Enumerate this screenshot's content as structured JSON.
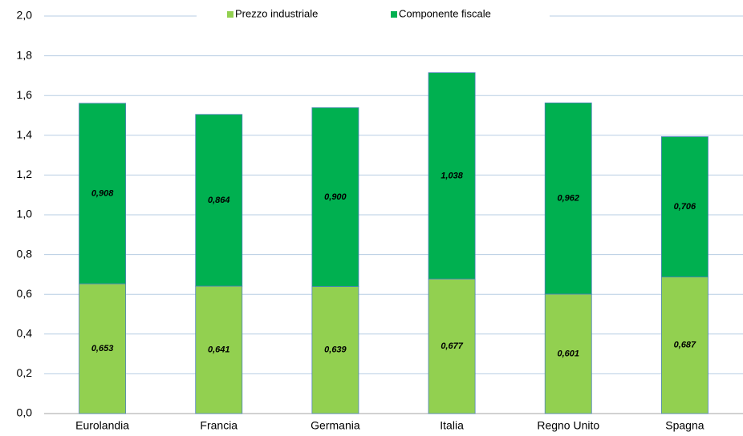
{
  "chart_data": {
    "type": "stacked-bar",
    "categories": [
      "Eurolandia",
      "Francia",
      "Germania",
      "Italia",
      "Regno Unito",
      "Spagna"
    ],
    "series": [
      {
        "name": "Prezzo industriale",
        "color": "#92d050",
        "values": [
          0.653,
          0.641,
          0.639,
          0.677,
          0.601,
          0.687
        ],
        "value_labels": [
          "0,653",
          "0,641",
          "0,639",
          "0,677",
          "0,601",
          "0,687"
        ]
      },
      {
        "name": "Componente fiscale",
        "color": "#00b050",
        "values": [
          0.908,
          0.864,
          0.9,
          1.038,
          0.962,
          0.706
        ],
        "value_labels": [
          "0,908",
          "0,864",
          "0,900",
          "1,038",
          "0,962",
          "0,706"
        ]
      }
    ],
    "ylim": [
      0,
      2
    ],
    "yticks": [
      {
        "value": 0,
        "label": "0,0"
      },
      {
        "value": 0.2,
        "label": "0,2"
      },
      {
        "value": 0.4,
        "label": "0,4"
      },
      {
        "value": 0.6,
        "label": "0,6"
      },
      {
        "value": 0.8,
        "label": "0,8"
      },
      {
        "value": 1,
        "label": "1,0"
      },
      {
        "value": 1.2,
        "label": "1,2"
      },
      {
        "value": 1.4,
        "label": "1,4"
      },
      {
        "value": 1.6,
        "label": "1,6"
      },
      {
        "value": 1.8,
        "label": "1,8"
      },
      {
        "value": 2,
        "label": "2,0"
      }
    ],
    "grid": true,
    "legend": "top"
  }
}
